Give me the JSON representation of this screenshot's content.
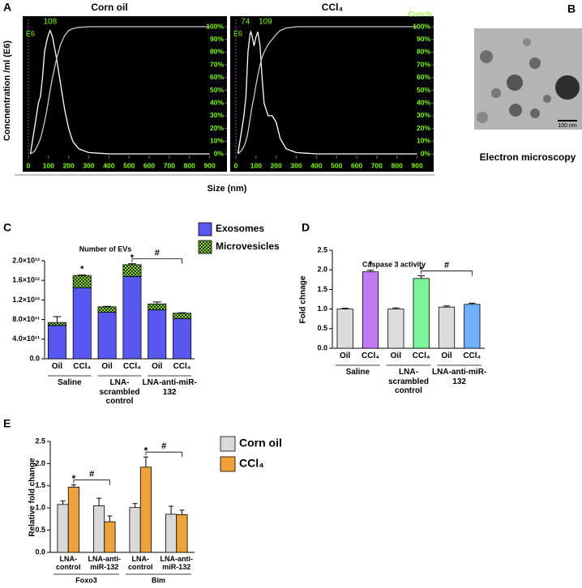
{
  "figure": {
    "panel_labels": [
      "A",
      "B",
      "C",
      "D",
      "E"
    ],
    "size_label": "Size (nm)",
    "em_scale": "100 nm",
    "em_caption": "Electron microscopy"
  },
  "chart_data": [
    {
      "type": "line",
      "title": "Corn oil",
      "ylabel": "Concnentration /ml (E6)",
      "y_unit": "E6",
      "background": "#000000",
      "tick_color": "#7cfc00",
      "x": [
        10,
        30,
        50,
        60,
        70,
        80,
        90,
        100,
        108,
        120,
        140,
        160,
        180,
        200,
        220,
        250,
        300,
        400,
        600,
        900
      ],
      "series": [
        {
          "color": "#ffffff",
          "values": [
            0,
            20,
            40,
            45,
            60,
            80,
            88,
            94,
            97,
            92,
            75,
            55,
            35,
            20,
            10,
            4,
            1,
            0,
            0,
            0
          ]
        },
        {
          "color": "#c8c8c8",
          "values": [
            0,
            2,
            8,
            12,
            18,
            25,
            33,
            42,
            50,
            60,
            75,
            86,
            93,
            97,
            98.5,
            99.5,
            100,
            100,
            100,
            100
          ]
        }
      ],
      "xlim": [
        0,
        950
      ],
      "xticks": [
        0,
        100,
        200,
        300,
        400,
        500,
        600,
        700,
        800,
        900
      ],
      "ylim": [
        0,
        100
      ],
      "yticks": [
        {
          "value": 0,
          "label": "0%"
        },
        {
          "value": 10,
          "label": "10%"
        },
        {
          "value": 20,
          "label": "20%"
        },
        {
          "value": 30,
          "label": "30%"
        },
        {
          "value": 40,
          "label": "40%"
        },
        {
          "value": 50,
          "label": "50%"
        },
        {
          "value": 60,
          "label": "60%"
        },
        {
          "value": 70,
          "label": "70%"
        },
        {
          "value": 80,
          "label": "80%"
        },
        {
          "value": 90,
          "label": "90%"
        },
        {
          "value": 100,
          "label": "100%"
        }
      ],
      "peak_labels": [
        108
      ]
    },
    {
      "type": "line",
      "title": "CCl₄",
      "y_unit": "E6",
      "y2label": "Cum %",
      "background": "#000000",
      "tick_color": "#7cfc00",
      "x": [
        10,
        30,
        40,
        50,
        60,
        70,
        74,
        80,
        90,
        100,
        109,
        120,
        130,
        140,
        160,
        180,
        200,
        220,
        250,
        300,
        400,
        900
      ],
      "series": [
        {
          "color": "#ffffff",
          "values": [
            0,
            20,
            30,
            45,
            80,
            94,
            96,
            93,
            85,
            92,
            96,
            85,
            60,
            40,
            30,
            30,
            25,
            12,
            4,
            1,
            0,
            0
          ]
        },
        {
          "color": "#c8c8c8",
          "values": [
            0,
            3,
            6,
            10,
            17,
            27,
            31,
            37,
            45,
            54,
            62,
            70,
            76,
            80,
            86,
            90,
            94,
            97,
            99,
            100,
            100,
            100
          ]
        }
      ],
      "xlim": [
        0,
        950
      ],
      "xticks": [
        0,
        100,
        200,
        300,
        400,
        500,
        600,
        700,
        800,
        900
      ],
      "ylim": [
        0,
        100
      ],
      "yticks": [
        {
          "value": 0,
          "label": "0%"
        },
        {
          "value": 10,
          "label": "10%"
        },
        {
          "value": 20,
          "label": "20%"
        },
        {
          "value": 30,
          "label": "30%"
        },
        {
          "value": 40,
          "label": "40%"
        },
        {
          "value": 50,
          "label": "50%"
        },
        {
          "value": 60,
          "label": "60%"
        },
        {
          "value": 70,
          "label": "70%"
        },
        {
          "value": 80,
          "label": "80%"
        },
        {
          "value": 90,
          "label": "90%"
        },
        {
          "value": 100,
          "label": "100%"
        }
      ],
      "peak_labels": [
        74,
        109
      ]
    },
    {
      "type": "bar",
      "title": "Number of EVs",
      "stacked": true,
      "categories": [
        "Oil",
        "CCl₄",
        "Oil",
        "CCl₄",
        "Oil",
        "CCl₄"
      ],
      "groups": [
        "Saline",
        "LNA-scrambled control",
        "LNA-anti-miR-132"
      ],
      "series": [
        {
          "name": "Exosomes",
          "color": "#5858f0",
          "values": [
            680000000000.0,
            1450000000000.0,
            950000000000.0,
            1680000000000.0,
            1000000000000.0,
            820000000000.0
          ]
        },
        {
          "name": "Microvesicles",
          "color": "#8ccf3a",
          "pattern": "checker",
          "values": [
            60000000000.0,
            250000000000.0,
            110000000000.0,
            240000000000.0,
            120000000000.0,
            110000000000.0
          ],
          "errors": [
            120000000000.0,
            10000000000.0,
            10000000000.0,
            20000000000.0,
            40000000000.0,
            10000000000.0
          ]
        }
      ],
      "ylim": [
        0,
        2000000000000.0
      ],
      "yticks": [
        {
          "value": 0,
          "label": "0.0"
        },
        {
          "value": 400000000000.0,
          "label": "4.0×10¹¹"
        },
        {
          "value": 800000000000.0,
          "label": "8.0×10¹¹"
        },
        {
          "value": 1200000000000.0,
          "label": "1.2×10¹²"
        },
        {
          "value": 1600000000000.0,
          "label": "1.6×10¹²"
        },
        {
          "value": 2000000000000.0,
          "label": "2.0×10¹²"
        }
      ],
      "stars": [
        null,
        "*",
        null,
        "*",
        null,
        null
      ],
      "brackets": [
        "#"
      ]
    },
    {
      "type": "bar",
      "title": "Caspase 3 activity",
      "ylabel": "Fold chnage",
      "categories": [
        "Oil",
        "CCl₄",
        "Oil",
        "CCl₄",
        "Oil",
        "CCl₄"
      ],
      "groups": [
        "Saline",
        "LNA-scrambled control",
        "LNA-anti-miR-132"
      ],
      "values": [
        1.0,
        1.95,
        1.0,
        1.78,
        1.05,
        1.12
      ],
      "errors": [
        0.02,
        0.04,
        0.03,
        0.07,
        0.03,
        0.03
      ],
      "colors": [
        "#dcdcdc",
        "#c07af2",
        "#dcdcdc",
        "#7cf59a",
        "#dcdcdc",
        "#6fb0ff"
      ],
      "ylim": [
        0,
        2.5
      ],
      "yticks": [
        {
          "value": 0,
          "label": "0.0"
        },
        0.5,
        {
          "value": 1,
          "label": "1.0"
        },
        1.5,
        {
          "value": 2,
          "label": "2.0"
        },
        2.5
      ],
      "stars": [
        null,
        "*",
        null,
        "*",
        null,
        null
      ],
      "brackets": [
        "#"
      ]
    },
    {
      "type": "bar",
      "ylabel": "Relative fold change",
      "categories": [
        "LNA-control",
        "LNA-anti-miR-132",
        "LNA-control",
        "LNA-anti-miR-132"
      ],
      "groups": [
        "Foxo3",
        "Bim"
      ],
      "series": [
        {
          "name": "Corn oil",
          "color": "#d9d9d9",
          "values": [
            1.08,
            1.05,
            1.01,
            0.86
          ],
          "errors": [
            0.08,
            0.17,
            0.09,
            0.18
          ]
        },
        {
          "name": "CCl₄",
          "color": "#f0a23a",
          "values": [
            1.47,
            0.69,
            1.92,
            0.85
          ],
          "errors": [
            0.05,
            0.13,
            0.23,
            0.1
          ],
          "stars": [
            "*",
            null,
            "*",
            null
          ]
        }
      ],
      "ylim": [
        0,
        2.5
      ],
      "yticks": [
        {
          "value": 0,
          "label": "0.0"
        },
        0.5,
        {
          "value": 1,
          "label": "1.0"
        },
        1.5,
        {
          "value": 2,
          "label": "2.0"
        },
        2.5
      ],
      "brackets": [
        "#",
        "#"
      ]
    }
  ]
}
